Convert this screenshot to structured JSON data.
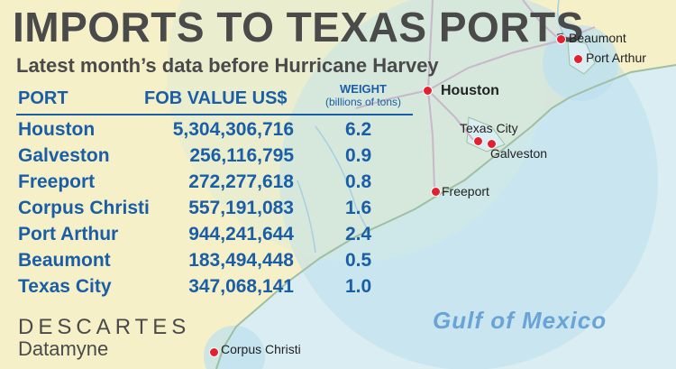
{
  "title": "IMPORTS TO TEXAS PORTS",
  "subtitle": "Latest month’s data before Hurricane Harvey",
  "table": {
    "headers": {
      "port": "PORT",
      "value": "FOB VALUE US$",
      "weight": "WEIGHT",
      "weight_sub": "(billions of tons)"
    },
    "rows": [
      {
        "port": "Houston",
        "value": "5,304,306,716",
        "weight": "6.2"
      },
      {
        "port": "Galveston",
        "value": "256,116,795",
        "weight": "0.9"
      },
      {
        "port": "Freeport",
        "value": "272,277,618",
        "weight": "0.8"
      },
      {
        "port": "Corpus Christi",
        "value": "557,191,083",
        "weight": "1.6"
      },
      {
        "port": "Port Arthur",
        "value": "944,241,644",
        "weight": "2.4"
      },
      {
        "port": "Beaumont",
        "value": "183,494,448",
        "weight": "0.5"
      },
      {
        "port": "Texas City",
        "value": "347,068,141",
        "weight": "1.0"
      }
    ]
  },
  "map": {
    "water_label": "Gulf of Mexico",
    "cities": {
      "beaumont": "Beaumont",
      "port_arthur": "Port Arthur",
      "houston": "Houston",
      "texas_city": "Texas City",
      "galveston": "Galveston",
      "freeport": "Freeport",
      "corpus_christi": "Corpus Christi"
    },
    "colors": {
      "land": "#f6f0c8",
      "water": "#d9edf2",
      "highlight": "#bcdfee",
      "marker": "#e3202f",
      "text_blue": "#1a5ea8"
    }
  },
  "brand": {
    "line1": "DESCARTES",
    "line2": "Datamyne"
  }
}
